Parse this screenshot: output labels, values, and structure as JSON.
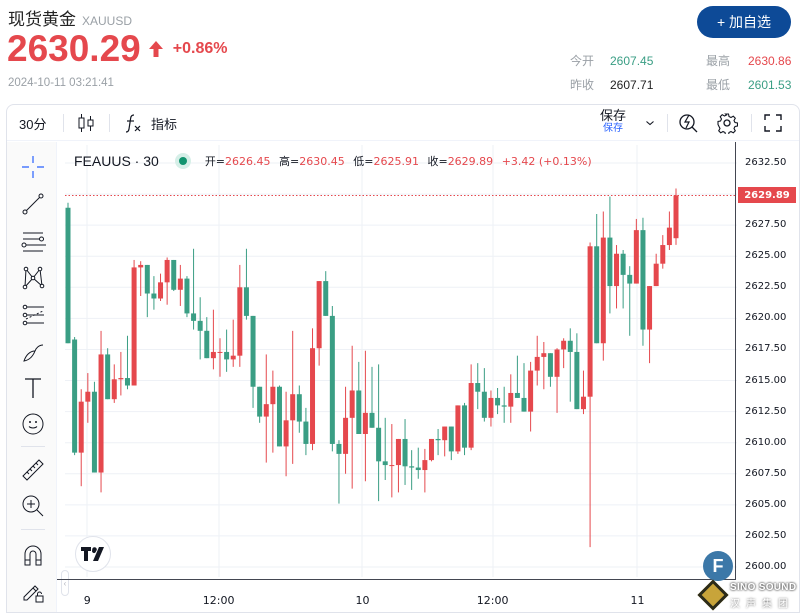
{
  "header": {
    "title": "现货黄金",
    "symbol": "XAUUSD",
    "price": "2630.29",
    "change_pct": "+0.86%",
    "timestamp": "2024-10-11 03:21:41",
    "watch_button": "+ 加自选",
    "stats": {
      "open_label": "今开",
      "open_value": "2607.45",
      "prev_close_label": "昨收",
      "prev_close_value": "2607.71",
      "high_label": "最高",
      "high_value": "2630.86",
      "low_label": "最低",
      "low_value": "2601.53"
    }
  },
  "toolbar": {
    "interval": "30分",
    "indicators_label": "指标",
    "save_label": "保存",
    "save_sublabel": "保存"
  },
  "left_tools": [
    "crosshair",
    "trend-line",
    "horizontal-lines",
    "pattern",
    "fib-retracement",
    "brush",
    "text",
    "emoji",
    "ruler",
    "zoom-in",
    "magnet",
    "lock-drawings"
  ],
  "legend": {
    "symbol": "FEAUUS · 30",
    "open_key": "开=",
    "open": "2626.45",
    "high_key": "高=",
    "high": "2630.45",
    "low_key": "低=",
    "low": "2625.91",
    "close_key": "收=",
    "close": "2629.89",
    "change": "+3.42 (+0.13%)"
  },
  "colors": {
    "up": "#e5484d",
    "down": "#3a9e84",
    "accent": "#0d4a97",
    "grid": "#eef1f6"
  },
  "price_axis": {
    "labels": [
      "2632.50",
      "2627.50",
      "2625.00",
      "2622.50",
      "2620.00",
      "2617.50",
      "2615.00",
      "2612.50",
      "2610.00",
      "2607.50",
      "2605.00",
      "2602.50",
      "2600.00"
    ],
    "last_price": "2629.89"
  },
  "time_axis": {
    "labels": [
      "9",
      "12:00",
      "10",
      "12:00",
      "11"
    ]
  },
  "watermark": {
    "badge": "F",
    "brand": "SINO SOUND",
    "brand_cn": "汉声集团"
  },
  "chart_data": {
    "type": "candlestick",
    "title": "FEAUUS · 30",
    "ylim": [
      2598.6,
      2634.0
    ],
    "x_ticks": [
      "9",
      "12:00",
      "10",
      "12:00",
      "11"
    ],
    "up_color_is_red": true,
    "candles": [
      [
        2628.9,
        2629.3,
        2618.3,
        2618.0
      ],
      [
        2618.3,
        2618.5,
        2609.0,
        2609.2
      ],
      [
        2609.2,
        2614.3,
        2606.5,
        2613.3
      ],
      [
        2613.3,
        2615.6,
        2611.6,
        2614.1
      ],
      [
        2614.1,
        2614.9,
        2607.6,
        2607.6
      ],
      [
        2607.6,
        2619.0,
        2606.0,
        2617.1
      ],
      [
        2617.1,
        2617.6,
        2613.5,
        2613.5
      ],
      [
        2613.5,
        2616.3,
        2613.2,
        2615.1
      ],
      [
        2615.1,
        2617.3,
        2613.8,
        2615.2
      ],
      [
        2615.2,
        2618.6,
        2614.3,
        2614.6
      ],
      [
        2614.6,
        2624.7,
        2614.6,
        2624.1
      ],
      [
        2624.1,
        2624.6,
        2621.8,
        2624.3
      ],
      [
        2624.3,
        2624.1,
        2620.1,
        2622.0
      ],
      [
        2622.0,
        2623.4,
        2620.7,
        2621.6
      ],
      [
        2621.6,
        2623.6,
        2621.4,
        2622.9
      ],
      [
        2622.9,
        2624.9,
        2621.1,
        2624.7
      ],
      [
        2624.7,
        2624.7,
        2622.2,
        2622.3
      ],
      [
        2622.3,
        2624.3,
        2621.0,
        2623.2
      ],
      [
        2623.2,
        2623.4,
        2620.1,
        2620.4
      ],
      [
        2620.4,
        2625.6,
        2619.1,
        2619.8
      ],
      [
        2619.8,
        2621.7,
        2616.7,
        2619.0
      ],
      [
        2619.0,
        2620.1,
        2617.0,
        2616.8
      ],
      [
        2616.8,
        2620.7,
        2615.9,
        2617.3
      ],
      [
        2617.3,
        2618.4,
        2615.3,
        2617.3
      ],
      [
        2617.3,
        2619.1,
        2615.7,
        2616.7
      ],
      [
        2616.7,
        2619.9,
        2616.1,
        2617.0
      ],
      [
        2617.0,
        2624.3,
        2616.1,
        2622.5
      ],
      [
        2622.5,
        2625.6,
        2619.9,
        2620.2
      ],
      [
        2620.2,
        2620.0,
        2612.8,
        2614.5
      ],
      [
        2614.5,
        2614.4,
        2611.6,
        2612.1
      ],
      [
        2612.1,
        2617.1,
        2608.4,
        2613.1
      ],
      [
        2613.1,
        2615.8,
        2609.2,
        2614.5
      ],
      [
        2614.5,
        2614.6,
        2609.7,
        2609.7
      ],
      [
        2609.7,
        2614.1,
        2607.3,
        2611.8
      ],
      [
        2611.8,
        2619.0,
        2608.3,
        2613.9
      ],
      [
        2613.9,
        2614.6,
        2610.8,
        2611.7
      ],
      [
        2611.7,
        2612.8,
        2609.0,
        2609.9
      ],
      [
        2609.9,
        2619.2,
        2609.4,
        2617.6
      ],
      [
        2617.6,
        2622.4,
        2616.2,
        2623.0
      ],
      [
        2623.0,
        2623.8,
        2620.2,
        2620.2
      ],
      [
        2620.2,
        2621.0,
        2609.3,
        2609.9
      ],
      [
        2609.9,
        2610.2,
        2605.1,
        2609.1
      ],
      [
        2609.1,
        2614.5,
        2607.5,
        2612.0
      ],
      [
        2612.0,
        2617.8,
        2606.3,
        2614.2
      ],
      [
        2614.2,
        2616.5,
        2610.7,
        2610.7
      ],
      [
        2610.7,
        2617.4,
        2606.9,
        2612.4
      ],
      [
        2612.4,
        2616.1,
        2611.5,
        2611.2
      ],
      [
        2611.2,
        2616.3,
        2605.3,
        2608.5
      ],
      [
        2608.5,
        2612.0,
        2607.0,
        2608.2
      ],
      [
        2608.2,
        2611.5,
        2605.6,
        2608.2
      ],
      [
        2608.2,
        2610.0,
        2606.0,
        2610.3
      ],
      [
        2610.3,
        2611.9,
        2606.6,
        2608.1
      ],
      [
        2608.1,
        2609.4,
        2606.2,
        2608.0
      ],
      [
        2608.0,
        2609.6,
        2607.1,
        2607.8
      ],
      [
        2607.8,
        2609.5,
        2606.0,
        2608.6
      ],
      [
        2608.6,
        2609.9,
        2608.5,
        2610.3
      ],
      [
        2610.3,
        2611.1,
        2609.0,
        2610.2
      ],
      [
        2610.2,
        2610.5,
        2608.9,
        2611.3
      ],
      [
        2611.3,
        2611.2,
        2608.6,
        2609.3
      ],
      [
        2609.3,
        2612.9,
        2609.1,
        2613.0
      ],
      [
        2613.0,
        2613.2,
        2609.0,
        2609.6
      ],
      [
        2609.6,
        2616.3,
        2609.4,
        2614.8
      ],
      [
        2614.8,
        2616.4,
        2612.7,
        2614.1
      ],
      [
        2614.1,
        2616.0,
        2611.7,
        2612.0
      ],
      [
        2612.0,
        2614.2,
        2611.3,
        2613.6
      ],
      [
        2613.6,
        2614.4,
        2612.3,
        2613.0
      ],
      [
        2613.0,
        2614.5,
        2611.6,
        2612.9
      ],
      [
        2612.9,
        2615.5,
        2611.6,
        2614.0
      ],
      [
        2614.0,
        2617.0,
        2613.9,
        2613.6
      ],
      [
        2613.6,
        2616.4,
        2612.5,
        2612.5
      ],
      [
        2612.5,
        2616.5,
        2610.9,
        2615.8
      ],
      [
        2615.8,
        2618.6,
        2614.6,
        2616.9
      ],
      [
        2616.9,
        2618.1,
        2614.3,
        2617.2
      ],
      [
        2617.2,
        2617.2,
        2614.5,
        2615.3
      ],
      [
        2615.3,
        2617.6,
        2612.4,
        2617.5
      ],
      [
        2617.5,
        2618.4,
        2616.0,
        2618.2
      ],
      [
        2618.2,
        2619.2,
        2613.3,
        2617.3
      ],
      [
        2617.3,
        2618.8,
        2612.7,
        2612.7
      ],
      [
        2612.7,
        2615.8,
        2612.3,
        2613.7
      ],
      [
        2613.7,
        2626.1,
        2601.6,
        2625.8
      ],
      [
        2625.8,
        2628.4,
        2618.0,
        2618.0
      ],
      [
        2618.0,
        2628.6,
        2616.6,
        2626.5
      ],
      [
        2626.5,
        2629.8,
        2620.4,
        2622.6
      ],
      [
        2622.6,
        2625.9,
        2620.8,
        2625.2
      ],
      [
        2625.2,
        2625.5,
        2620.8,
        2623.5
      ],
      [
        2623.5,
        2624.2,
        2618.6,
        2622.8
      ],
      [
        2622.8,
        2628.0,
        2622.8,
        2627.1
      ],
      [
        2627.1,
        2628.1,
        2617.8,
        2619.1
      ],
      [
        2619.1,
        2622.6,
        2616.4,
        2622.6
      ],
      [
        2622.6,
        2625.2,
        2622.6,
        2624.4
      ],
      [
        2624.4,
        2626.7,
        2624.0,
        2625.9
      ],
      [
        2625.9,
        2628.6,
        2625.5,
        2627.3
      ],
      [
        2626.45,
        2630.45,
        2625.91,
        2629.89
      ]
    ]
  }
}
